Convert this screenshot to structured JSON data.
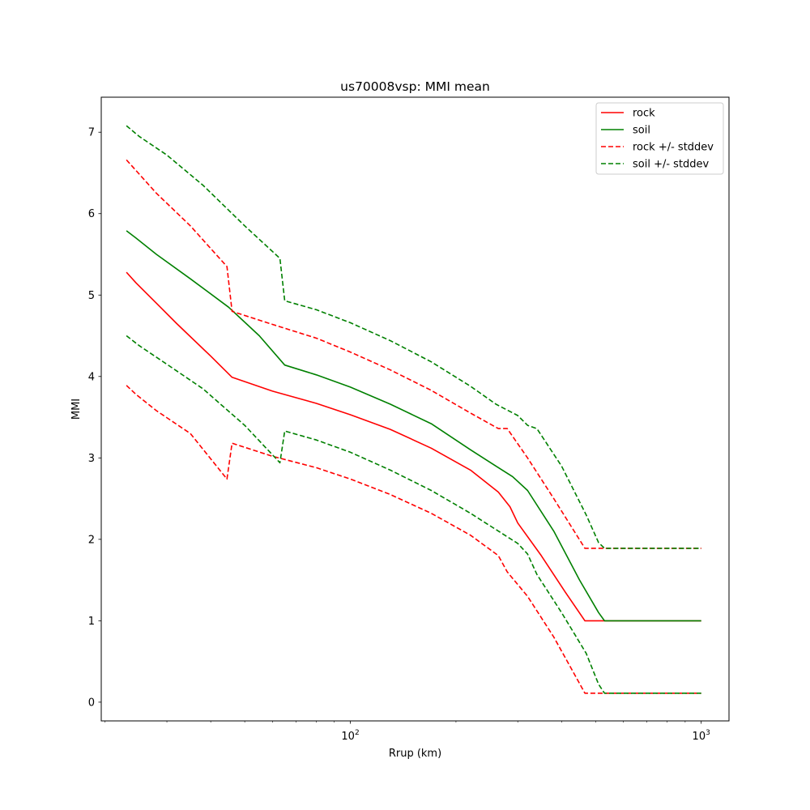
{
  "chart_data": {
    "type": "line",
    "title": "us70008vsp: MMI mean",
    "xlabel": "Rrup (km)",
    "ylabel": "MMI",
    "xscale": "log",
    "xlim": [
      19.5,
      1200
    ],
    "ylim": [
      -0.23,
      7.43
    ],
    "grid": false,
    "legend_position": "top-right",
    "x_ticks": [
      {
        "value": 100,
        "base": "10",
        "exp": "2"
      },
      {
        "value": 1000,
        "base": "10",
        "exp": "3"
      }
    ],
    "y_ticks": [
      0,
      1,
      2,
      3,
      4,
      5,
      6,
      7
    ],
    "series": [
      {
        "name": "rock",
        "color": "#ff0000",
        "dash": "solid",
        "x": [
          23,
          24.5,
          28,
          32,
          40,
          46,
          60,
          80,
          100,
          130,
          170,
          220,
          264,
          285,
          300,
          350,
          410,
          466,
          550,
          700,
          1000
        ],
        "y": [
          5.28,
          5.15,
          4.9,
          4.65,
          4.25,
          3.99,
          3.82,
          3.67,
          3.53,
          3.35,
          3.12,
          2.85,
          2.58,
          2.4,
          2.2,
          1.8,
          1.35,
          1.0,
          1.0,
          1.0,
          1.0
        ]
      },
      {
        "name": "soil",
        "color": "#008000",
        "dash": "solid",
        "x": [
          23,
          24.5,
          28,
          35,
          45,
          55,
          65,
          80,
          100,
          130,
          170,
          220,
          260,
          290,
          320,
          380,
          450,
          510,
          530,
          700,
          1000
        ],
        "y": [
          5.79,
          5.7,
          5.5,
          5.2,
          4.85,
          4.5,
          4.14,
          4.02,
          3.87,
          3.66,
          3.42,
          3.1,
          2.9,
          2.77,
          2.6,
          2.1,
          1.5,
          1.1,
          1.0,
          1.0,
          1.0
        ]
      },
      {
        "name": "rock +/- stddev",
        "color": "#ff0000",
        "dash": "dashed",
        "x": [
          23,
          24.5,
          28,
          35,
          44.5,
          46,
          60,
          80,
          100,
          130,
          170,
          220,
          264,
          280,
          320,
          380,
          466,
          550,
          700,
          1000
        ],
        "y": [
          6.66,
          6.53,
          6.25,
          5.85,
          5.35,
          4.8,
          4.64,
          4.47,
          4.3,
          4.08,
          3.83,
          3.55,
          3.36,
          3.36,
          3.0,
          2.5,
          1.89,
          1.89,
          1.89,
          1.89
        ]
      },
      {
        "name": "",
        "color": "#ff0000",
        "dash": "dashed",
        "x": [
          23,
          24.5,
          28,
          35,
          44.5,
          46,
          60,
          80,
          100,
          130,
          170,
          220,
          264,
          280,
          320,
          380,
          466,
          550,
          700,
          1000
        ],
        "y": [
          3.89,
          3.78,
          3.58,
          3.3,
          2.74,
          3.18,
          3.02,
          2.88,
          2.74,
          2.55,
          2.32,
          2.05,
          1.8,
          1.6,
          1.3,
          0.8,
          0.11,
          0.11,
          0.11,
          0.11
        ]
      },
      {
        "name": "soil +/- stddev",
        "color": "#008000",
        "dash": "dashed",
        "x": [
          23,
          25,
          30,
          38,
          50,
          63,
          65,
          80,
          100,
          130,
          170,
          220,
          260,
          300,
          320,
          340,
          400,
          470,
          510,
          530,
          700,
          1000
        ],
        "y": [
          7.08,
          6.95,
          6.72,
          6.35,
          5.85,
          5.45,
          4.93,
          4.82,
          4.66,
          4.44,
          4.18,
          3.88,
          3.66,
          3.52,
          3.4,
          3.36,
          2.9,
          2.3,
          1.96,
          1.89,
          1.89,
          1.89
        ]
      },
      {
        "name": "",
        "color": "#008000",
        "dash": "dashed",
        "x": [
          23,
          25,
          30,
          38,
          50,
          63,
          65,
          80,
          100,
          130,
          170,
          220,
          260,
          300,
          320,
          340,
          400,
          470,
          510,
          530,
          700,
          1000
        ],
        "y": [
          4.5,
          4.38,
          4.15,
          3.85,
          3.4,
          2.94,
          3.33,
          3.22,
          3.07,
          2.85,
          2.6,
          2.32,
          2.12,
          1.95,
          1.82,
          1.57,
          1.1,
          0.6,
          0.22,
          0.11,
          0.11,
          0.11
        ]
      }
    ]
  }
}
